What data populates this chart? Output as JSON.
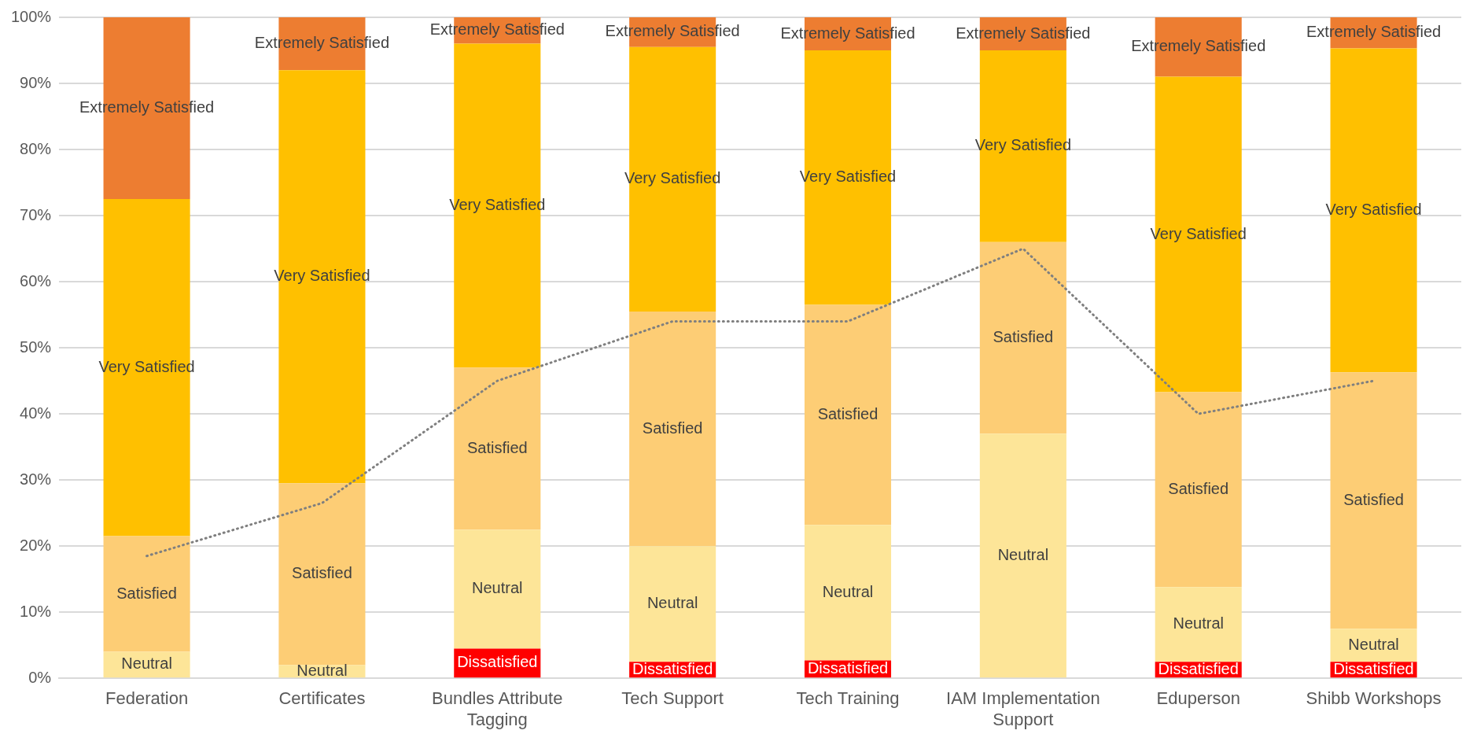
{
  "chart_data": {
    "type": "bar",
    "stacked": true,
    "categories": [
      "Federation",
      "Certificates",
      "Bundles Attribute Tagging",
      "Tech Support",
      "Tech Training",
      "IAM Implementation Support",
      "Eduperson",
      "Shibb Workshops"
    ],
    "ylim": [
      0,
      100
    ],
    "yticks": [
      {
        "value": 0,
        "label": "0%"
      },
      {
        "value": 10,
        "label": "10%"
      },
      {
        "value": 20,
        "label": "20%"
      },
      {
        "value": 30,
        "label": "30%"
      },
      {
        "value": 40,
        "label": "40%"
      },
      {
        "value": 50,
        "label": "50%"
      },
      {
        "value": 60,
        "label": "60%"
      },
      {
        "value": 70,
        "label": "70%"
      },
      {
        "value": 80,
        "label": "80%"
      },
      {
        "value": 90,
        "label": "90%"
      },
      {
        "value": 100,
        "label": "100%"
      }
    ],
    "grid": "y",
    "legend": false,
    "series": [
      {
        "color": "#ff0000",
        "values": [
          0,
          0,
          4.5,
          2.5,
          2.7,
          0,
          2.5,
          2.5
        ],
        "value_labels": [
          null,
          null,
          "Dissatisfied",
          "Dissatisfied",
          "Dissatisfied",
          null,
          "Dissatisfied",
          "Dissatisfied"
        ]
      },
      {
        "color": "#fde598",
        "values": [
          4,
          2,
          18,
          17.5,
          20.5,
          37,
          11.3,
          5
        ],
        "value_labels": [
          "Neutral",
          "Neutral",
          "Neutral",
          "Neutral",
          "Neutral",
          "Neutral",
          "Neutral",
          "Neutral"
        ]
      },
      {
        "color": "#fdcd75",
        "values": [
          17.5,
          27.5,
          24.5,
          35.5,
          33.3,
          29,
          29.5,
          38.8
        ],
        "value_labels": [
          "Satisfied",
          "Satisfied",
          "Satisfied",
          "Satisfied",
          "Satisfied",
          "Satisfied",
          "Satisfied",
          "Satisfied"
        ]
      },
      {
        "color": "#ffc000",
        "values": [
          51,
          62.5,
          49,
          40,
          38.5,
          29,
          47.7,
          49
        ],
        "value_labels": [
          "Very Satisfied",
          "Very Satisfied",
          "Very Satisfied",
          "Very Satisfied",
          "Very Satisfied",
          "Very Satisfied",
          "Very Satisfied",
          "Very Satisfied"
        ]
      },
      {
        "color": "#ed7d31",
        "values": [
          27.5,
          8,
          4,
          4.5,
          5,
          5,
          9,
          4.7
        ],
        "value_labels": [
          "Extremely Satisfied",
          "Extremely Satisfied",
          "Extremely Satisfied",
          "Extremely Satisfied",
          "Extremely Satisfied",
          "Extremely Satisfied",
          "Extremely Satisfied",
          "Extremely Satisfied"
        ]
      },
      {
        "type": "line",
        "color": "#7f7f7f",
        "line_style": "dotted",
        "marker": "none",
        "values": [
          18.5,
          26.5,
          45,
          54,
          54,
          65,
          40,
          45
        ]
      }
    ]
  }
}
